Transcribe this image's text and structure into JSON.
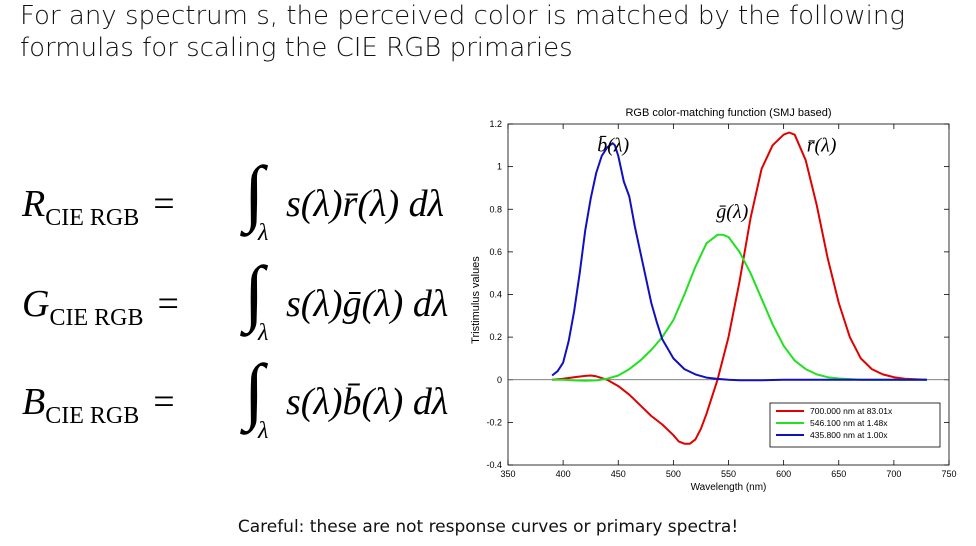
{
  "heading": {
    "line1": "For any spectrum s, the perceived color is matched by the following",
    "line2": "formulas for scaling the CIE RGB primaries"
  },
  "equations": [
    {
      "lhs_letter": "R",
      "lhs_sub": "CIE RGB",
      "equals": "=",
      "integral": "∫",
      "integral_sub": "λ",
      "body": "s(λ)r̄(λ) dλ"
    },
    {
      "lhs_letter": "G",
      "lhs_sub": "CIE RGB",
      "equals": "=",
      "integral": "∫",
      "integral_sub": "λ",
      "body": "s(λ)ḡ(λ) dλ"
    },
    {
      "lhs_letter": "B",
      "lhs_sub": "CIE RGB",
      "equals": "=",
      "integral": "∫",
      "integral_sub": "λ",
      "body": "s(λ)b̄(λ) dλ"
    }
  ],
  "caption": "Careful: these are not response curves or primary spectra!",
  "chart_data": {
    "type": "line",
    "title": "RGB color-matching function (SMJ based)",
    "xlabel": "Wavelength (nm)",
    "ylabel": "Tristimulus values",
    "xlim": [
      350,
      750
    ],
    "ylim": [
      -0.4,
      1.2
    ],
    "xticks": [
      350,
      400,
      450,
      500,
      550,
      600,
      650,
      700,
      750
    ],
    "yticks": [
      -0.4,
      -0.2,
      0,
      0.2,
      0.4,
      0.6,
      0.8,
      1,
      1.2
    ],
    "ytick_labels": [
      "-0.4",
      "-0.2",
      "0",
      "0.2",
      "0.4",
      "0.6",
      "0.8",
      "1",
      "1.2"
    ],
    "zero_line": true,
    "curve_labels": [
      "b̄(λ)",
      "ḡ(λ)",
      "r̄(λ)"
    ],
    "legend": [
      "700.000 nm at 83.01x",
      "546.100 nm at  1.48x",
      "435.800 nm at  1.00x"
    ],
    "legend_position": "bottom-right",
    "series": [
      {
        "name": "700.000 nm at 83.01x",
        "color": "#e00000",
        "x": [
          390,
          400,
          410,
          420,
          425,
          430,
          440,
          450,
          460,
          470,
          480,
          490,
          500,
          505,
          510,
          515,
          520,
          525,
          530,
          540,
          550,
          560,
          570,
          580,
          590,
          600,
          605,
          610,
          620,
          630,
          640,
          650,
          660,
          670,
          680,
          690,
          700,
          710,
          720,
          730
        ],
        "y": [
          0,
          0.005,
          0.012,
          0.018,
          0.02,
          0.016,
          0.0,
          -0.03,
          -0.07,
          -0.12,
          -0.17,
          -0.21,
          -0.26,
          -0.29,
          -0.3,
          -0.3,
          -0.28,
          -0.23,
          -0.16,
          0.0,
          0.2,
          0.46,
          0.76,
          0.99,
          1.1,
          1.15,
          1.16,
          1.15,
          1.03,
          0.82,
          0.57,
          0.36,
          0.2,
          0.1,
          0.05,
          0.025,
          0.012,
          0.005,
          0.002,
          0.0
        ]
      },
      {
        "name": "546.100 nm at  1.48x",
        "color": "#22e022",
        "x": [
          390,
          400,
          410,
          420,
          430,
          440,
          450,
          460,
          470,
          480,
          490,
          500,
          510,
          520,
          530,
          540,
          545,
          550,
          560,
          570,
          580,
          590,
          600,
          610,
          620,
          630,
          640,
          650,
          660,
          670,
          680,
          690,
          700,
          710,
          720,
          730
        ],
        "y": [
          0,
          0.0,
          -0.003,
          -0.005,
          -0.003,
          0.005,
          0.02,
          0.05,
          0.09,
          0.14,
          0.2,
          0.28,
          0.4,
          0.53,
          0.64,
          0.68,
          0.68,
          0.67,
          0.6,
          0.5,
          0.38,
          0.26,
          0.16,
          0.09,
          0.05,
          0.025,
          0.012,
          0.006,
          0.003,
          0.0,
          0.0,
          0.0,
          0.0,
          0.0,
          0.0,
          0.0
        ]
      },
      {
        "name": "435.800 nm at  1.00x",
        "color": "#1010c0",
        "x": [
          390,
          395,
          400,
          405,
          410,
          415,
          420,
          425,
          430,
          435,
          440,
          445,
          447,
          450,
          455,
          460,
          465,
          470,
          475,
          480,
          485,
          490,
          500,
          510,
          520,
          530,
          540,
          550,
          560,
          570,
          580,
          590,
          600,
          620,
          640,
          660,
          680,
          700,
          730
        ],
        "y": [
          0.02,
          0.04,
          0.08,
          0.18,
          0.32,
          0.5,
          0.7,
          0.85,
          0.97,
          1.05,
          1.09,
          1.11,
          1.1,
          1.05,
          0.93,
          0.86,
          0.72,
          0.6,
          0.48,
          0.36,
          0.27,
          0.19,
          0.1,
          0.05,
          0.025,
          0.01,
          0.004,
          0.0,
          -0.002,
          -0.002,
          -0.002,
          -0.001,
          0,
          0,
          0,
          0,
          0,
          0,
          0
        ]
      }
    ]
  }
}
